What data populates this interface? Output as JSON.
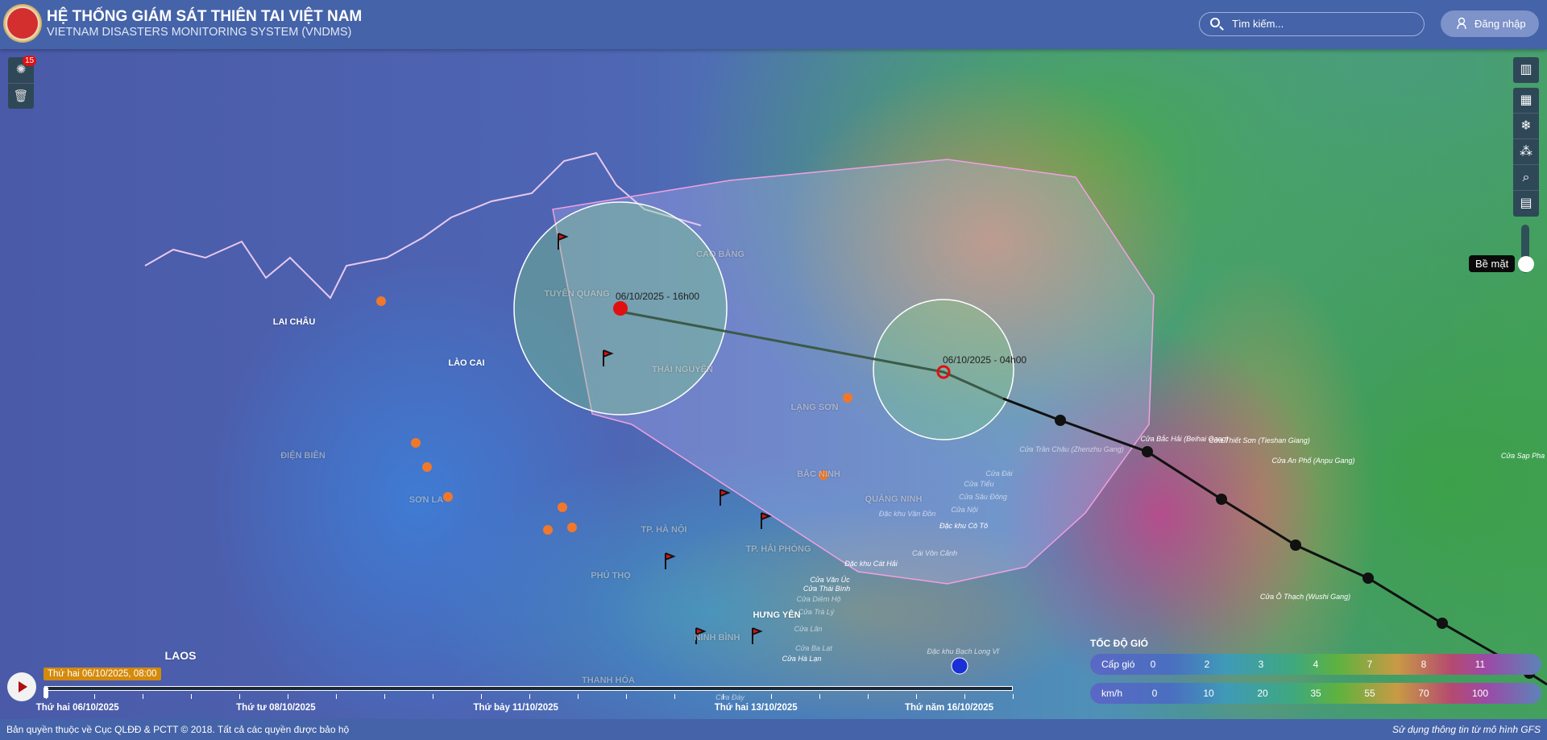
{
  "header": {
    "title": "HỆ THỐNG GIÁM SÁT THIÊN TAI VIỆT NAM",
    "subtitle": "VIETNAM DISASTERS MONITORING SYSTEM (VNDMS)",
    "search_placeholder": "Tìm kiếm...",
    "login_label": "Đăng nhập"
  },
  "left_tools": {
    "alerts_badge": "15",
    "items": [
      {
        "icon": "disaster-alert-icon"
      },
      {
        "icon": "trash-icon"
      }
    ]
  },
  "right_tools": {
    "items": [
      {
        "icon": "map-icon"
      },
      {
        "icon": "map-layers-icon"
      },
      {
        "icon": "weather-icon"
      },
      {
        "icon": "network-icon"
      },
      {
        "icon": "location-search-icon"
      },
      {
        "icon": "book-icon"
      }
    ],
    "layer_label": "Bề mặt"
  },
  "map": {
    "places": [
      "LAI CHÂU",
      "LÀO CAI",
      "ĐIỆN BIÊN",
      "SƠN LA",
      "TUYÊN QUANG",
      "CAO BẰNG",
      "THÁI NGUYÊN",
      "LẠNG SƠN",
      "BẮC NINH",
      "QUẢNG NINH",
      "TP. HÀ NỘI",
      "TP. HẢI PHÒNG",
      "PHÚ THỌ",
      "HƯNG YÊN",
      "NINH BÌNH",
      "THANH HÓA",
      "LAOS"
    ],
    "coast": [
      "Cửa Bắc Hải (Beihai Gang)",
      "Cửa Thiết Sơn (Tieshan Giang)",
      "Cửa An Phố (Anpu Gang)",
      "Cửa Sạp Pha",
      "Cửa Ô Thạch (Wushi Gang)",
      "Cửa Trần Châu (Zhenzhu Gang)",
      "Cửa Đài",
      "Cửa Tiểu",
      "Cửa Sâu Đông",
      "Cửa Nội",
      "Đặc khu Vân Đồn",
      "Đặc khu Cô Tô",
      "Cái Vôn Cảnh",
      "Đặc khu Cát Hải",
      "Cửa Văn Úc",
      "Cửa Thái Bình",
      "Cửa Diêm Hộ",
      "Cửa Trà Lý",
      "Cửa Lân",
      "Cửa Ba Lạt",
      "Cửa Hà Lạn",
      "Đặc khu Bạch Long Vĩ",
      "Cửa Đáy"
    ],
    "storm_points": [
      "06/10/2025 - 16h00",
      "06/10/2025 - 04h00"
    ]
  },
  "legend": {
    "title": "TỐC ĐỘ GIÓ",
    "scale_label": "Cấp gió",
    "scale": [
      "0",
      "2",
      "3",
      "4",
      "7",
      "8",
      "11"
    ],
    "speed_label": "km/h",
    "speeds": [
      "0",
      "10",
      "20",
      "35",
      "55",
      "70",
      "100"
    ]
  },
  "timeline": {
    "current": "Thứ hai 06/10/2025, 08:00",
    "dates": [
      "Thứ hai 06/10/2025",
      "Thứ tư 08/10/2025",
      "Thứ bảy 11/10/2025",
      "Thứ hai 13/10/2025",
      "Thứ năm 16/10/2025"
    ],
    "progress": 0
  },
  "footer": {
    "copyright": "Bản quyền thuộc về Cục QLĐĐ & PCTT © 2018. Tất cả các quyền được bảo hộ",
    "source": "Sử dụng thông tin từ mô hình GFS"
  }
}
